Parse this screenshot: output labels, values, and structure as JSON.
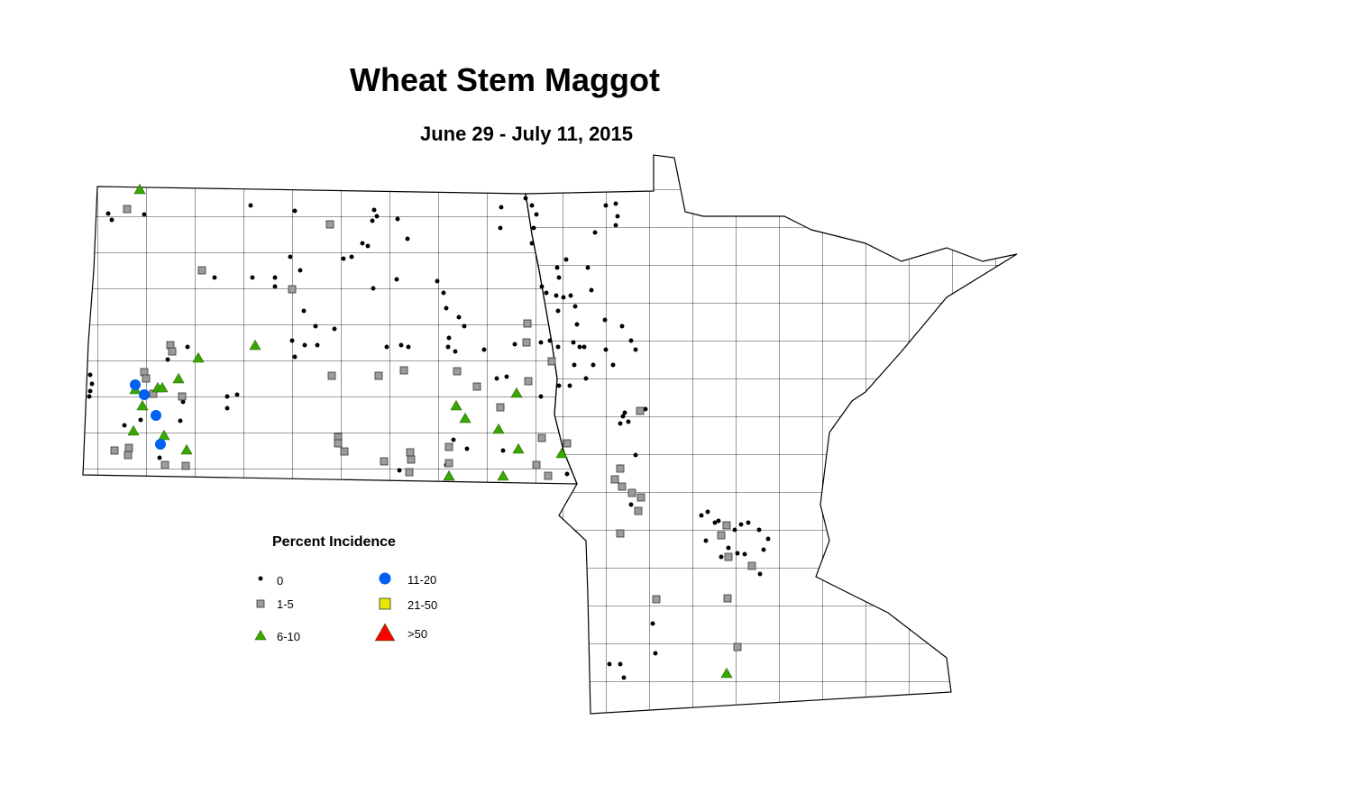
{
  "title": "Wheat Stem Maggot",
  "subtitle": "June 29 - July 11, 2015",
  "legend": {
    "title": "Percent Incidence",
    "classes": [
      {
        "label": "0",
        "symbol": "dot",
        "color": "#000000"
      },
      {
        "label": "1-5",
        "symbol": "square",
        "color": "#9c9c9c"
      },
      {
        "label": "6-10",
        "symbol": "triangle",
        "color": "#38a800"
      },
      {
        "label": "11-20",
        "symbol": "circle",
        "color": "#0060f0"
      },
      {
        "label": "21-50",
        "symbol": "square",
        "color": "#e8e800"
      },
      {
        "label": ">50",
        "symbol": "triangle",
        "color": "#ff0000"
      }
    ]
  }
}
